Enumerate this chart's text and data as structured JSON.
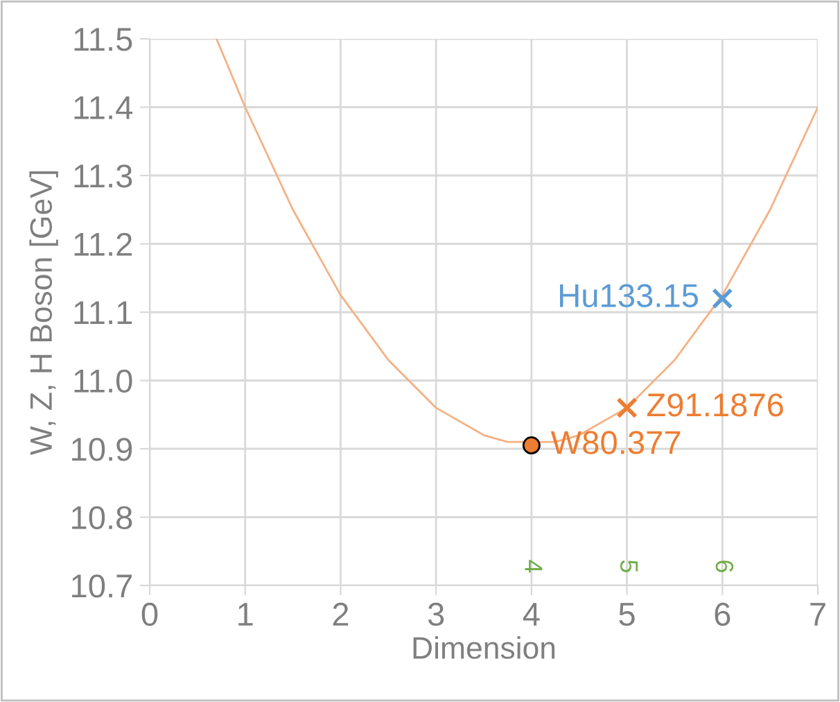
{
  "chart_data": {
    "type": "line",
    "xlabel": "Dimension",
    "ylabel": "W, Z, H Boson [GeV]",
    "xlim": [
      0,
      7
    ],
    "ylim": [
      10.7,
      11.5
    ],
    "xticks": [
      0,
      1,
      2,
      3,
      4,
      5,
      6,
      7
    ],
    "yticks": [
      {
        "value": 10.7,
        "label": "10.7"
      },
      {
        "value": 10.8,
        "label": "10.8"
      },
      {
        "value": 10.9,
        "label": "10.9"
      },
      {
        "value": 11.0,
        "label": "11.0"
      },
      {
        "value": 11.1,
        "label": "11.1"
      },
      {
        "value": 11.2,
        "label": "11.2"
      },
      {
        "value": 11.3,
        "label": "11.3"
      },
      {
        "value": 11.4,
        "label": "11.4"
      },
      {
        "value": 11.5,
        "label": "11.5"
      }
    ],
    "grid": true,
    "legend": false,
    "series": [
      {
        "color": "#f4b183",
        "marker": "none",
        "line_style": "solid",
        "x": [
          0.7,
          1,
          1.5,
          2,
          2.5,
          3,
          3.5,
          3.75,
          4.25,
          4.5,
          5,
          5.5,
          6,
          6.5,
          7
        ],
        "values": [
          11.5,
          11.4,
          11.25,
          11.125,
          11.03,
          10.96,
          10.92,
          10.91,
          10.91,
          10.92,
          10.96,
          11.03,
          11.125,
          11.25,
          11.4
        ]
      },
      {
        "type": "scatter",
        "color": "#ed7d31",
        "marker": "circle",
        "x": [
          4
        ],
        "values": [
          10.905
        ]
      },
      {
        "type": "scatter",
        "color": "#ed7d31",
        "marker": "cross",
        "x": [
          5
        ],
        "values": [
          10.96
        ]
      },
      {
        "type": "scatter",
        "color": "#5b9bd5",
        "marker": "cross",
        "x": [
          6
        ],
        "values": [
          11.12
        ]
      }
    ],
    "annotations": [
      {
        "text": "W80.377",
        "x": 4,
        "y": 10.905
      },
      {
        "text": "Z91.1876",
        "x": 5,
        "y": 10.96
      },
      {
        "text": "Hu133.15",
        "x": 6,
        "y": 11.12
      },
      "4",
      "5",
      "6"
    ]
  }
}
